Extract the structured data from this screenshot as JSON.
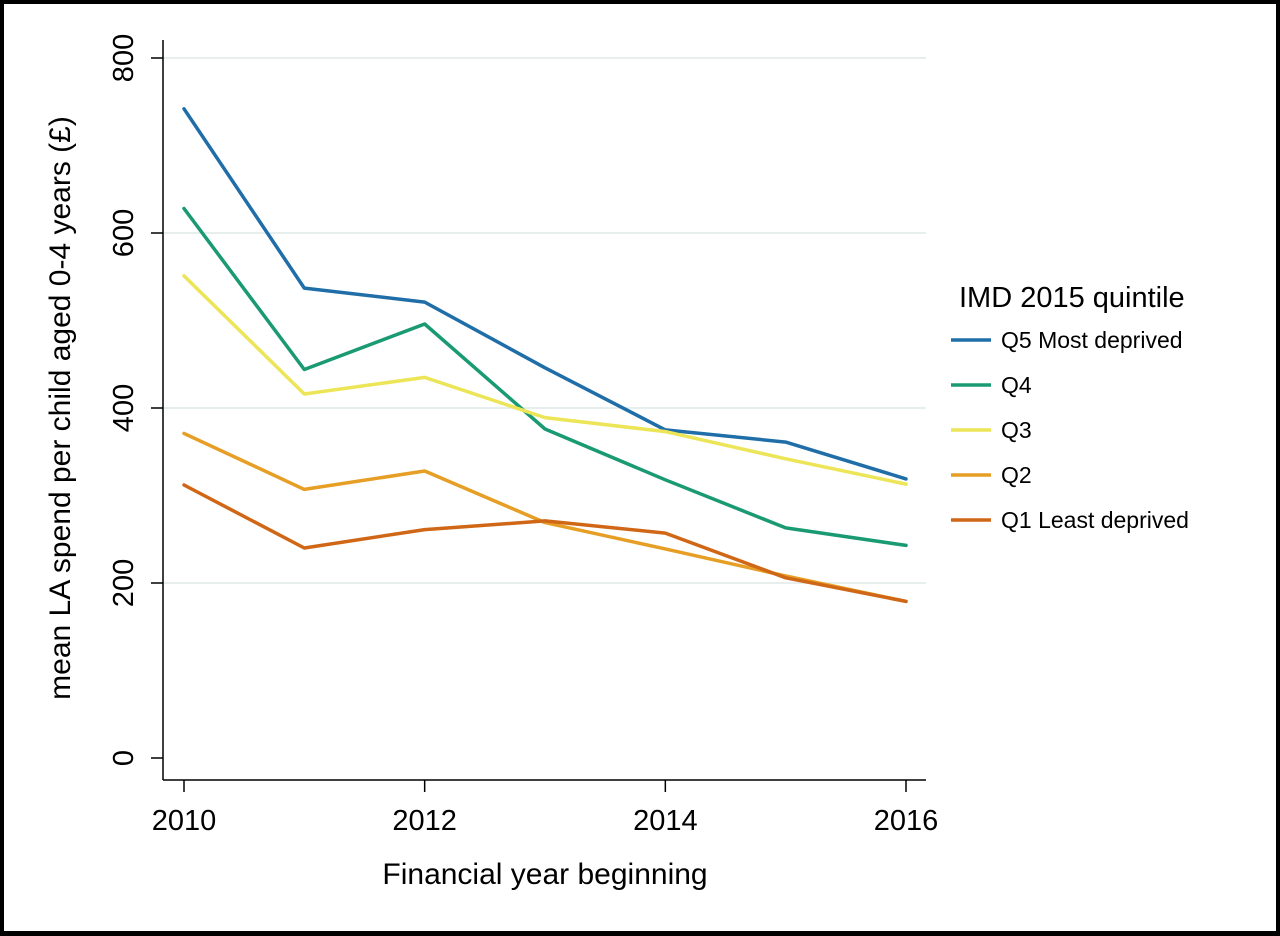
{
  "chart_data": {
    "type": "line",
    "xlabel": "Financial year beginning",
    "ylabel": "mean LA spend per child aged 0-4 years (£)",
    "x": [
      2010,
      2011,
      2012,
      2013,
      2014,
      2015,
      2016
    ],
    "xlim": [
      2010,
      2016
    ],
    "ylim": [
      0,
      800
    ],
    "xticks": [
      2010,
      2012,
      2014,
      2016
    ],
    "yticks": [
      0,
      200,
      400,
      600,
      800
    ],
    "grid": true,
    "legend": {
      "title": "IMD 2015 quintile",
      "position": "right"
    },
    "series": [
      {
        "name": "Q5 Most deprived",
        "color": "#1f6ea8",
        "values": [
          742,
          537,
          521,
          446,
          375,
          361,
          319
        ]
      },
      {
        "name": "Q4",
        "color": "#1a9a72",
        "values": [
          628,
          444,
          496,
          376,
          318,
          263,
          243
        ]
      },
      {
        "name": "Q3",
        "color": "#ece557",
        "values": [
          551,
          416,
          435,
          389,
          373,
          342,
          313
        ]
      },
      {
        "name": "Q2",
        "color": "#e69e25",
        "values": [
          371,
          307,
          328,
          269,
          239,
          208,
          179
        ]
      },
      {
        "name": "Q1 Least deprived",
        "color": "#d06716",
        "values": [
          312,
          240,
          261,
          271,
          257,
          206,
          179
        ]
      }
    ]
  }
}
